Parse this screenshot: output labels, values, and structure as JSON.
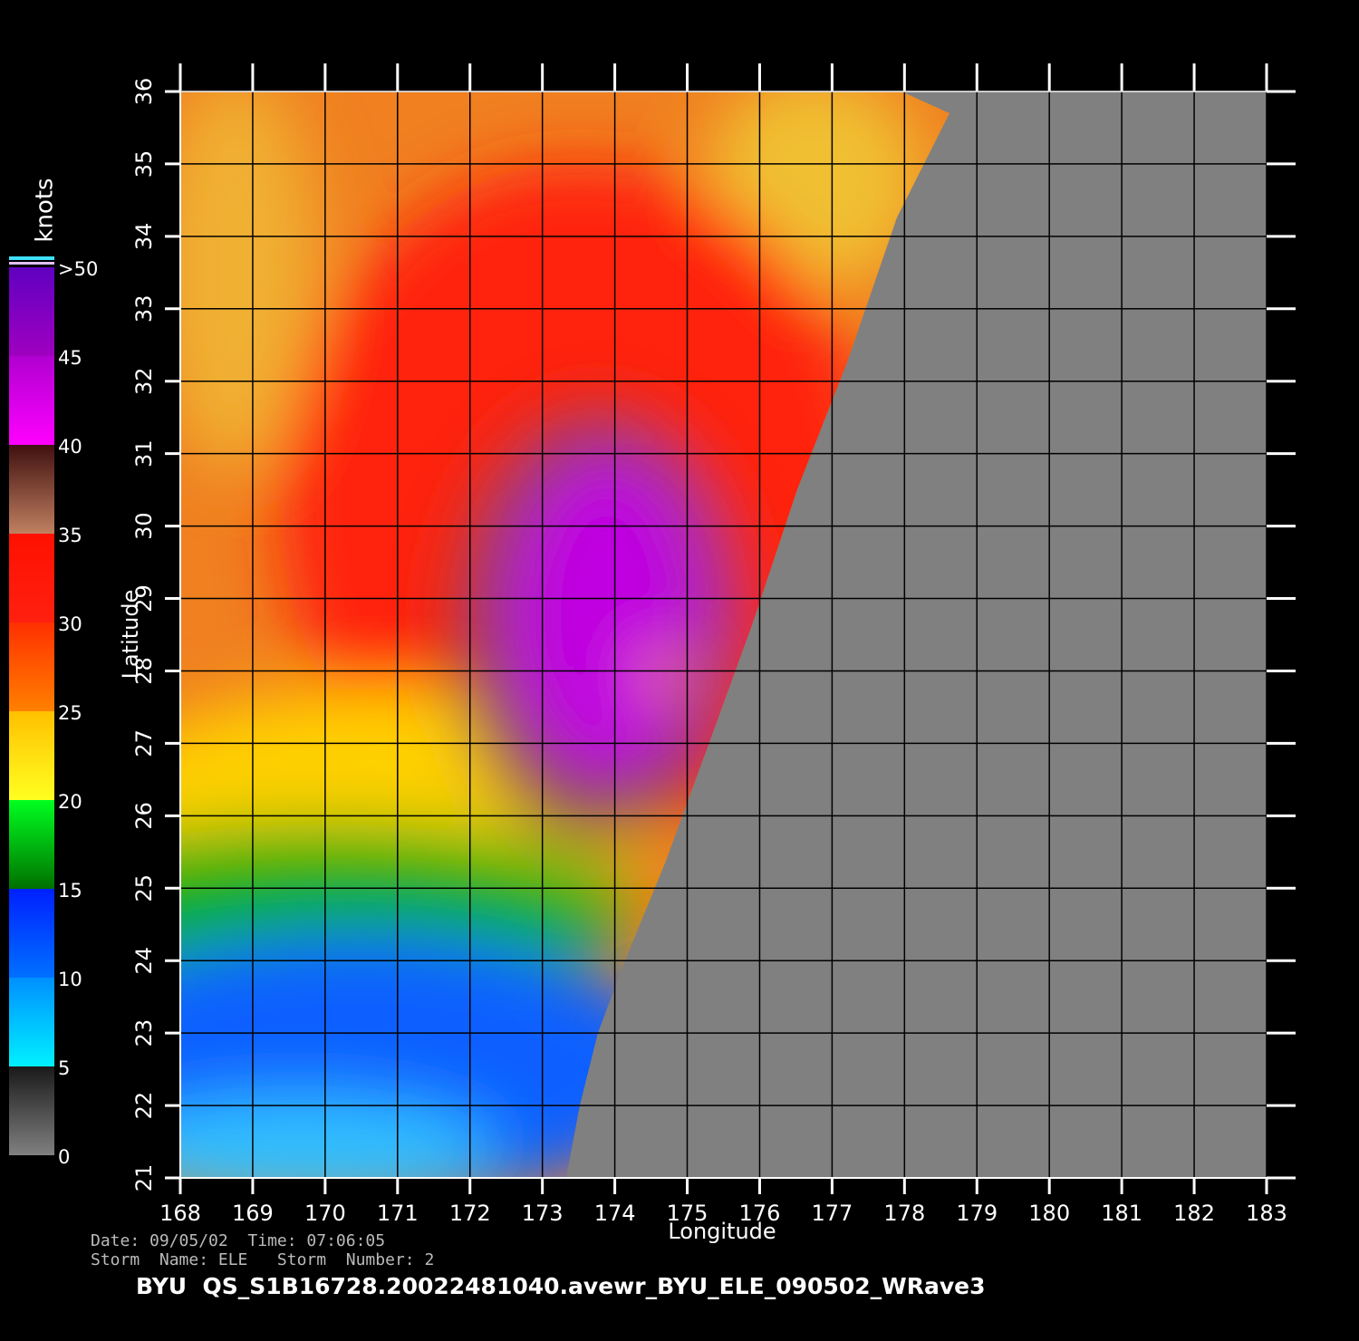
{
  "chart_data": {
    "type": "map",
    "xlabel": "Longitude",
    "ylabel": "Latitude",
    "xlim": [
      168,
      183
    ],
    "ylim": [
      21,
      36
    ],
    "xticks": [
      168,
      169,
      170,
      171,
      172,
      173,
      174,
      175,
      176,
      177,
      178,
      179,
      180,
      181,
      182,
      183
    ],
    "yticks": [
      21,
      22,
      23,
      24,
      25,
      26,
      27,
      28,
      29,
      30,
      31,
      32,
      33,
      34,
      35,
      36
    ],
    "grid": true,
    "colorbar": {
      "label": "knots",
      "range": [
        0,
        50
      ],
      "ticks": [
        0,
        5,
        10,
        15,
        20,
        25,
        30,
        35,
        40,
        45,
        {
          "value": 50,
          "label": ">50"
        }
      ]
    }
  },
  "footer": {
    "line1": "Date: 09/05/02  Time: 07:06:05",
    "line2": "Storm  Name: ELE   Storm  Number: 2",
    "title": "BYU  QS_S1B16728.20022481040.avewr_BYU_ELE_090502_WRave3"
  }
}
